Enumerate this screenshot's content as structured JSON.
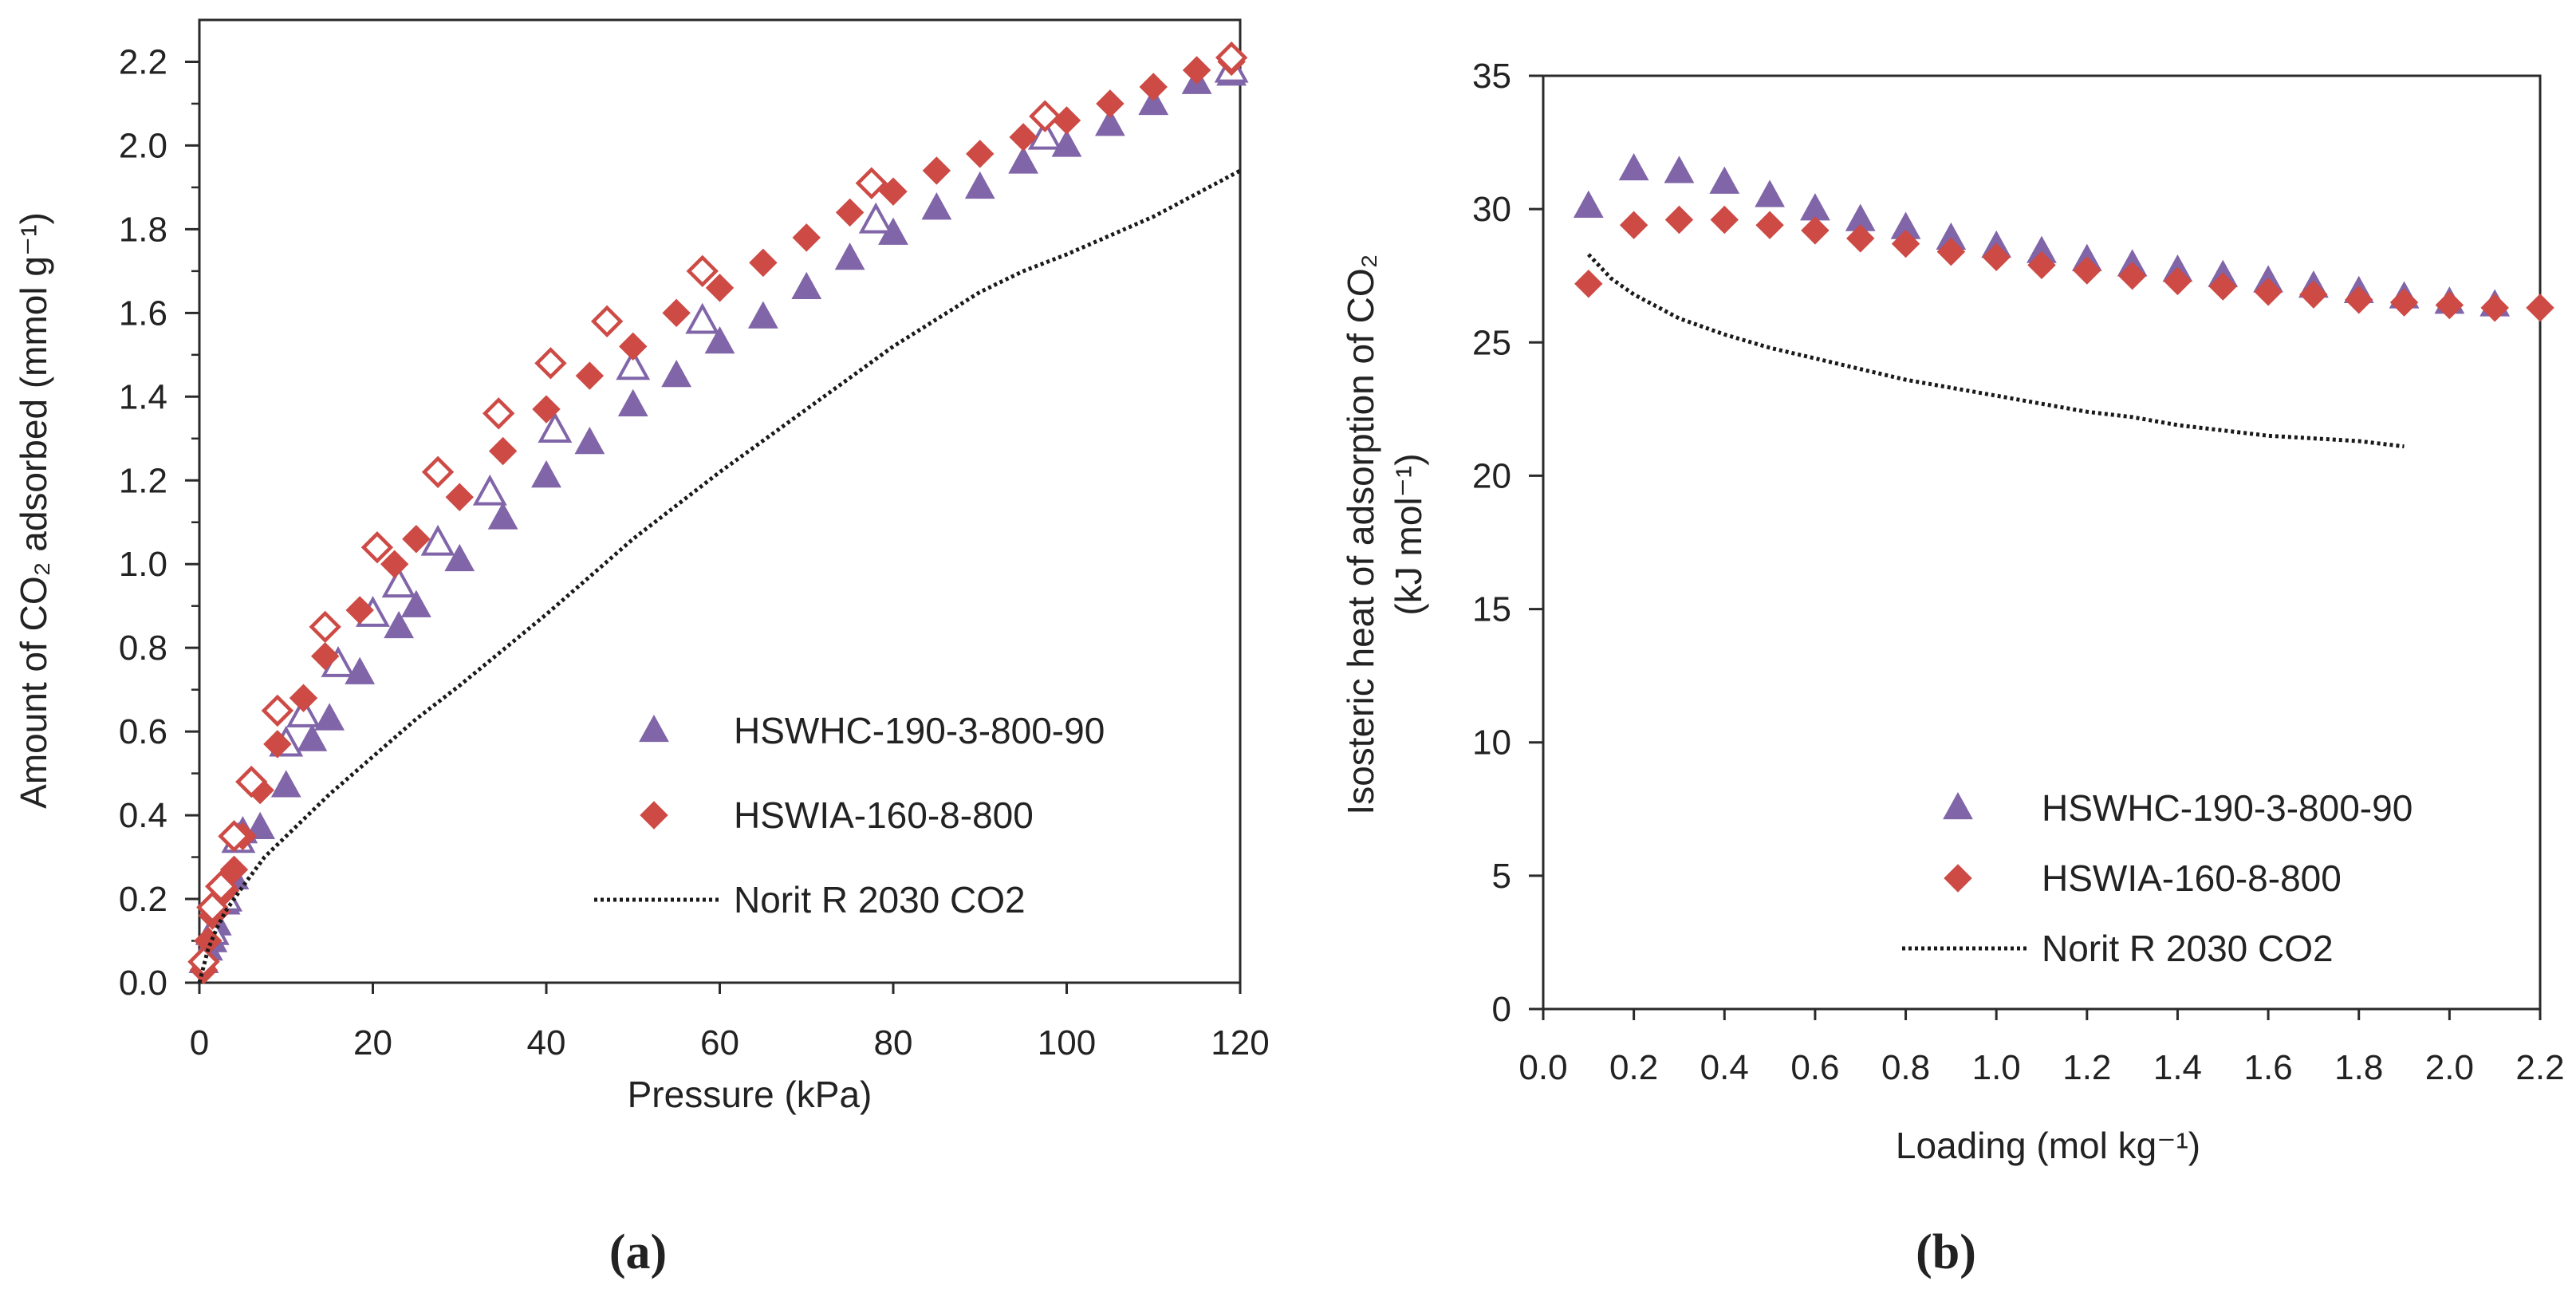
{
  "colors": {
    "hswhc": "#8065a8",
    "hswia": "#cd4a45",
    "norit": "#1a1a1a",
    "axis": "#2a2a2a"
  },
  "chart_data": [
    {
      "type": "scatter",
      "panel_label": "(a)",
      "title": "",
      "xlabel": "Pressure (kPa)",
      "ylabel": "Amount of CO₂ adsorbed (mmol g⁻¹)",
      "xlim": [
        0,
        120
      ],
      "ylim": [
        0,
        2.3
      ],
      "x_ticks": [
        "0",
        "20",
        "40",
        "60",
        "80",
        "100",
        "120"
      ],
      "y_ticks": [
        "0.0",
        "0.2",
        "0.4",
        "0.6",
        "0.8",
        "1.0",
        "1.2",
        "1.4",
        "1.6",
        "1.8",
        "2.0",
        "2.2"
      ],
      "legend_position": "bottom-right",
      "legend": [
        "HSWHC-190-3-800-90",
        "HSWIA-160-8-800",
        "Norit R 2030 CO2"
      ],
      "series": [
        {
          "name": "HSWHC-190-3-800-90",
          "marker": "triangle",
          "fill": "filled",
          "color_key": "hswhc",
          "x": [
            0.5,
            1.0,
            1.5,
            2.0,
            3.0,
            4.0,
            5.0,
            7.0,
            10.0,
            13.0,
            15.0,
            18.5,
            23.0,
            25.0,
            30.0,
            35.0,
            40.0,
            45.0,
            50.0,
            55.0,
            60.0,
            65.0,
            70.0,
            75.0,
            80.0,
            85.0,
            90.0,
            95.0,
            100.0,
            105.0,
            110.0,
            115.0,
            119.0
          ],
          "y": [
            0.05,
            0.08,
            0.1,
            0.14,
            0.19,
            0.25,
            0.36,
            0.37,
            0.47,
            0.58,
            0.63,
            0.74,
            0.85,
            0.9,
            1.01,
            1.11,
            1.21,
            1.29,
            1.38,
            1.45,
            1.53,
            1.59,
            1.66,
            1.73,
            1.79,
            1.85,
            1.9,
            1.96,
            2.0,
            2.05,
            2.1,
            2.15,
            2.17
          ]
        },
        {
          "name": "HSWHC-190-3-800-90 (desorption)",
          "marker": "triangle",
          "fill": "open",
          "color_key": "hswhc",
          "x": [
            1.5,
            3.0,
            4.5,
            10.0,
            12.0,
            16.0,
            20.0,
            23.0,
            27.5,
            33.5,
            41.0,
            50.0,
            58.0,
            78.0,
            97.5,
            119.0
          ],
          "y": [
            0.12,
            0.2,
            0.34,
            0.57,
            0.64,
            0.76,
            0.88,
            0.95,
            1.05,
            1.17,
            1.32,
            1.47,
            1.58,
            1.82,
            2.02,
            2.18
          ]
        },
        {
          "name": "HSWIA-160-8-800",
          "marker": "diamond",
          "fill": "filled",
          "color_key": "hswia",
          "x": [
            0.5,
            1.0,
            1.5,
            2.0,
            3.0,
            4.0,
            5.0,
            7.0,
            9.0,
            12.0,
            14.5,
            18.5,
            22.5,
            25.0,
            30.0,
            35.0,
            40.0,
            45.0,
            50.0,
            55.0,
            60.0,
            65.0,
            70.0,
            75.0,
            80.0,
            85.0,
            90.0,
            95.0,
            100.0,
            105.0,
            110.0,
            115.0,
            119.0
          ],
          "y": [
            0.03,
            0.1,
            0.16,
            0.17,
            0.22,
            0.27,
            0.35,
            0.46,
            0.57,
            0.68,
            0.78,
            0.89,
            1.0,
            1.06,
            1.16,
            1.27,
            1.37,
            1.45,
            1.52,
            1.6,
            1.66,
            1.72,
            1.78,
            1.84,
            1.89,
            1.94,
            1.98,
            2.02,
            2.06,
            2.1,
            2.14,
            2.18,
            2.2
          ]
        },
        {
          "name": "HSWIA-160-8-800 (desorption)",
          "marker": "diamond",
          "fill": "open",
          "color_key": "hswia",
          "x": [
            0.5,
            1.5,
            2.5,
            4.0,
            6.0,
            9.0,
            14.5,
            20.5,
            27.5,
            34.5,
            40.5,
            47.0,
            58.0,
            77.5,
            97.5,
            119.0
          ],
          "y": [
            0.05,
            0.18,
            0.23,
            0.35,
            0.48,
            0.65,
            0.85,
            1.04,
            1.22,
            1.36,
            1.48,
            1.58,
            1.7,
            1.91,
            2.07,
            2.21
          ]
        },
        {
          "name": "Norit R 2030 CO2",
          "marker": "dotted-line",
          "color_key": "norit",
          "x": [
            0,
            1,
            2,
            3,
            5,
            7.5,
            10,
            15,
            20,
            25,
            30,
            40,
            50,
            60,
            70,
            80,
            90,
            95,
            100,
            110,
            120
          ],
          "y": [
            0.0,
            0.08,
            0.13,
            0.17,
            0.23,
            0.3,
            0.35,
            0.45,
            0.54,
            0.63,
            0.71,
            0.88,
            1.06,
            1.22,
            1.37,
            1.52,
            1.65,
            1.7,
            1.74,
            1.83,
            1.94
          ]
        }
      ]
    },
    {
      "type": "scatter",
      "panel_label": "(b)",
      "title": "",
      "xlabel": "Loading (mol kg⁻¹)",
      "ylabel": "Isosteric heat of adsorption of CO₂ (kJ mol⁻¹)",
      "ylabel_line1": "Isosteric heat of adsorption of CO₂",
      "ylabel_line2": "(kJ mol⁻¹)",
      "xlim": [
        0,
        2.2
      ],
      "ylim": [
        0,
        35
      ],
      "x_ticks": [
        "0.0",
        "0.2",
        "0.4",
        "0.6",
        "0.8",
        "1.0",
        "1.2",
        "1.4",
        "1.6",
        "1.8",
        "2.0",
        "2.2"
      ],
      "y_ticks": [
        "0",
        "5",
        "10",
        "15",
        "20",
        "25",
        "30",
        "35"
      ],
      "legend_position": "bottom-right",
      "legend": [
        "HSWHC-190-3-800-90",
        "HSWIA-160-8-800",
        "Norit R 2030 CO2"
      ],
      "series": [
        {
          "name": "HSWHC-190-3-800-90",
          "marker": "triangle",
          "fill": "filled",
          "color_key": "hswhc",
          "x": [
            0.1,
            0.2,
            0.3,
            0.4,
            0.5,
            0.6,
            0.7,
            0.8,
            0.9,
            1.0,
            1.1,
            1.2,
            1.3,
            1.4,
            1.5,
            1.6,
            1.7,
            1.8,
            1.9,
            2.0,
            2.1
          ],
          "y": [
            30.1,
            31.5,
            31.4,
            31.0,
            30.5,
            30.0,
            29.6,
            29.3,
            28.9,
            28.6,
            28.4,
            28.1,
            27.9,
            27.7,
            27.5,
            27.3,
            27.1,
            26.9,
            26.7,
            26.5,
            26.4
          ]
        },
        {
          "name": "HSWIA-160-8-800",
          "marker": "diamond",
          "fill": "filled",
          "color_key": "hswia",
          "x": [
            0.1,
            0.2,
            0.3,
            0.4,
            0.5,
            0.6,
            0.7,
            0.8,
            0.9,
            1.0,
            1.1,
            1.2,
            1.3,
            1.4,
            1.5,
            1.6,
            1.7,
            1.8,
            1.9,
            2.0,
            2.1,
            2.2
          ],
          "y": [
            27.2,
            29.4,
            29.6,
            29.6,
            29.4,
            29.2,
            28.9,
            28.7,
            28.4,
            28.2,
            27.9,
            27.7,
            27.5,
            27.3,
            27.1,
            26.9,
            26.8,
            26.6,
            26.5,
            26.4,
            26.3,
            26.3
          ]
        },
        {
          "name": "Norit R 2030 CO2",
          "marker": "dotted-line",
          "color_key": "norit",
          "x": [
            0.1,
            0.15,
            0.2,
            0.3,
            0.4,
            0.5,
            0.6,
            0.7,
            0.8,
            0.9,
            1.0,
            1.1,
            1.2,
            1.3,
            1.4,
            1.5,
            1.6,
            1.7,
            1.8,
            1.9
          ],
          "y": [
            28.3,
            27.4,
            26.8,
            25.9,
            25.3,
            24.8,
            24.4,
            24.0,
            23.6,
            23.3,
            23.0,
            22.7,
            22.4,
            22.2,
            21.9,
            21.7,
            21.5,
            21.4,
            21.3,
            21.1
          ]
        }
      ]
    }
  ]
}
